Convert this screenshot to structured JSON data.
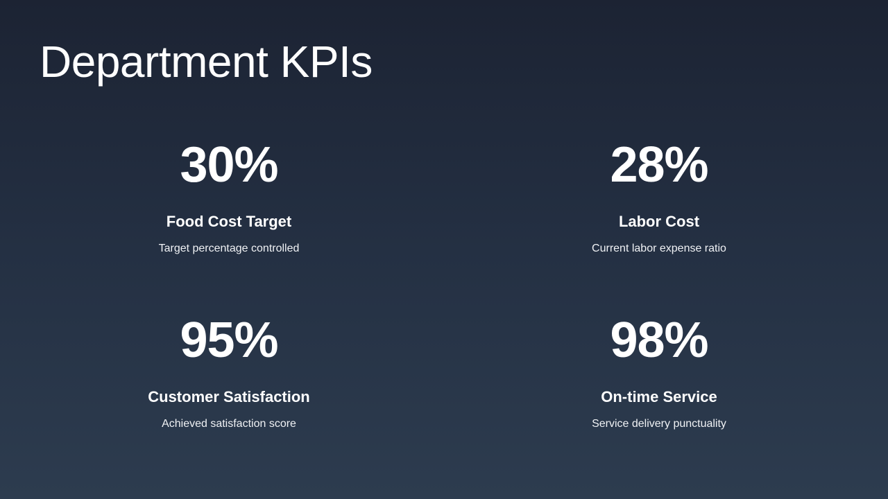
{
  "title": "Department KPIs",
  "kpis": [
    {
      "value": "30%",
      "label": "Food Cost Target",
      "description": "Target percentage controlled"
    },
    {
      "value": "28%",
      "label": "Labor Cost",
      "description": "Current labor expense ratio"
    },
    {
      "value": "95%",
      "label": "Customer Satisfaction",
      "description": "Achieved satisfaction score"
    },
    {
      "value": "98%",
      "label": "On-time Service",
      "description": "Service delivery punctuality"
    }
  ],
  "colors": {
    "background_top": "#1c2333",
    "background_bottom": "#2d3c4f",
    "text": "#ffffff"
  }
}
